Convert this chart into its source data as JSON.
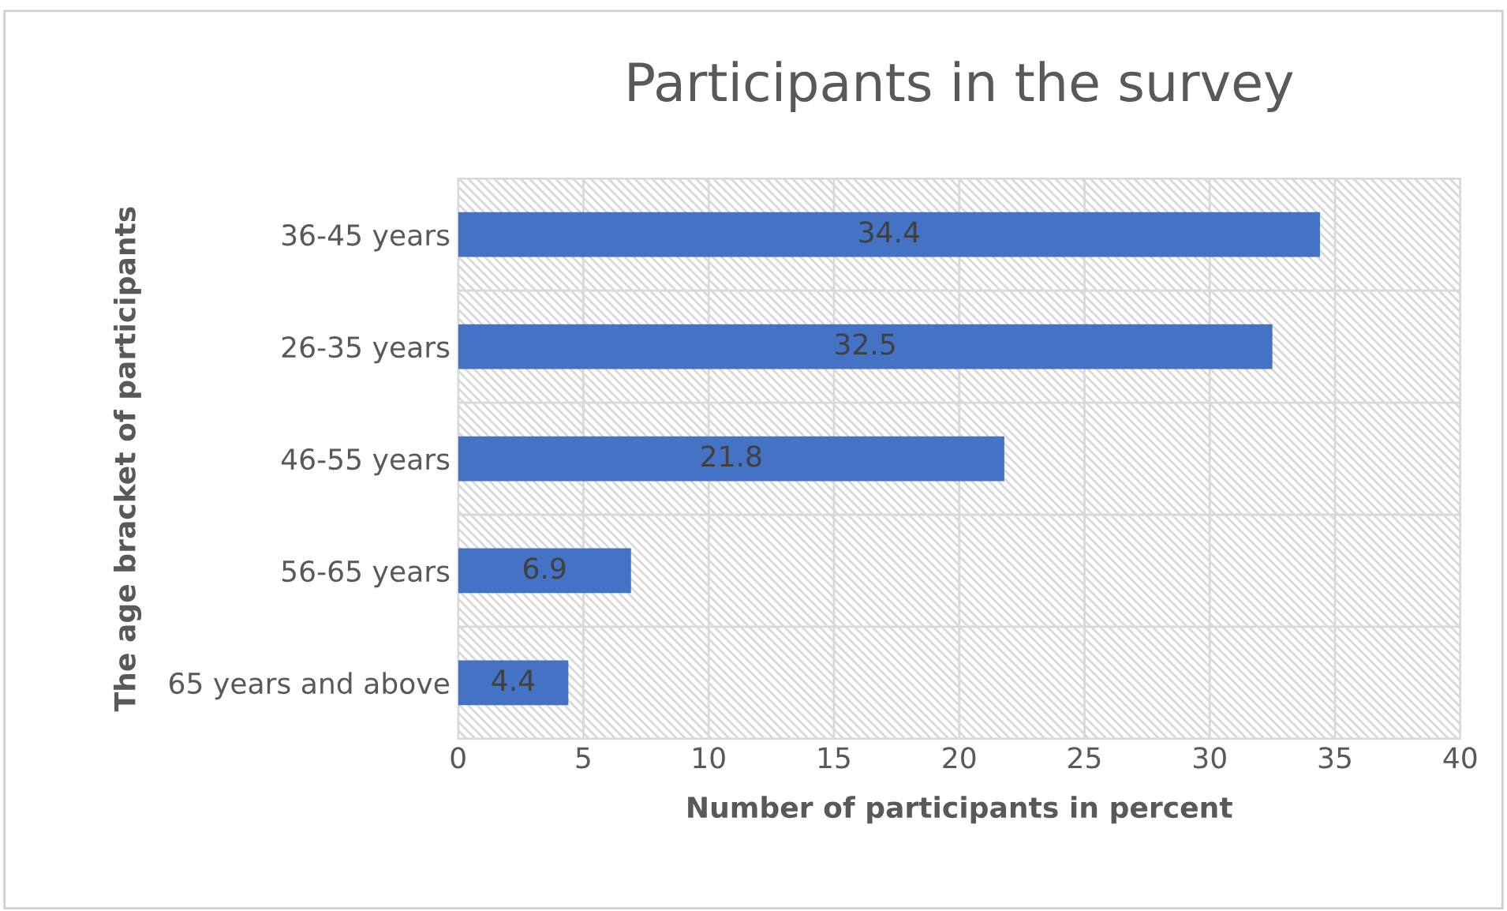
{
  "chart_data": {
    "type": "bar",
    "orientation": "horizontal",
    "title": "Participants in the survey",
    "xlabel": "Number of participants in percent",
    "ylabel": "The age bracket of participants",
    "categories": [
      "36-45 years",
      "26-35 years",
      "46-55 years",
      "56-65 years",
      "65 years and above"
    ],
    "values": [
      34.4,
      32.5,
      21.8,
      6.9,
      4.4
    ],
    "color": "#4472c4",
    "data_labels": true,
    "xlim": [
      0,
      40
    ],
    "xticks": [
      0,
      5,
      10,
      15,
      20,
      25,
      30,
      35,
      40
    ],
    "grid": true,
    "legend": false
  }
}
